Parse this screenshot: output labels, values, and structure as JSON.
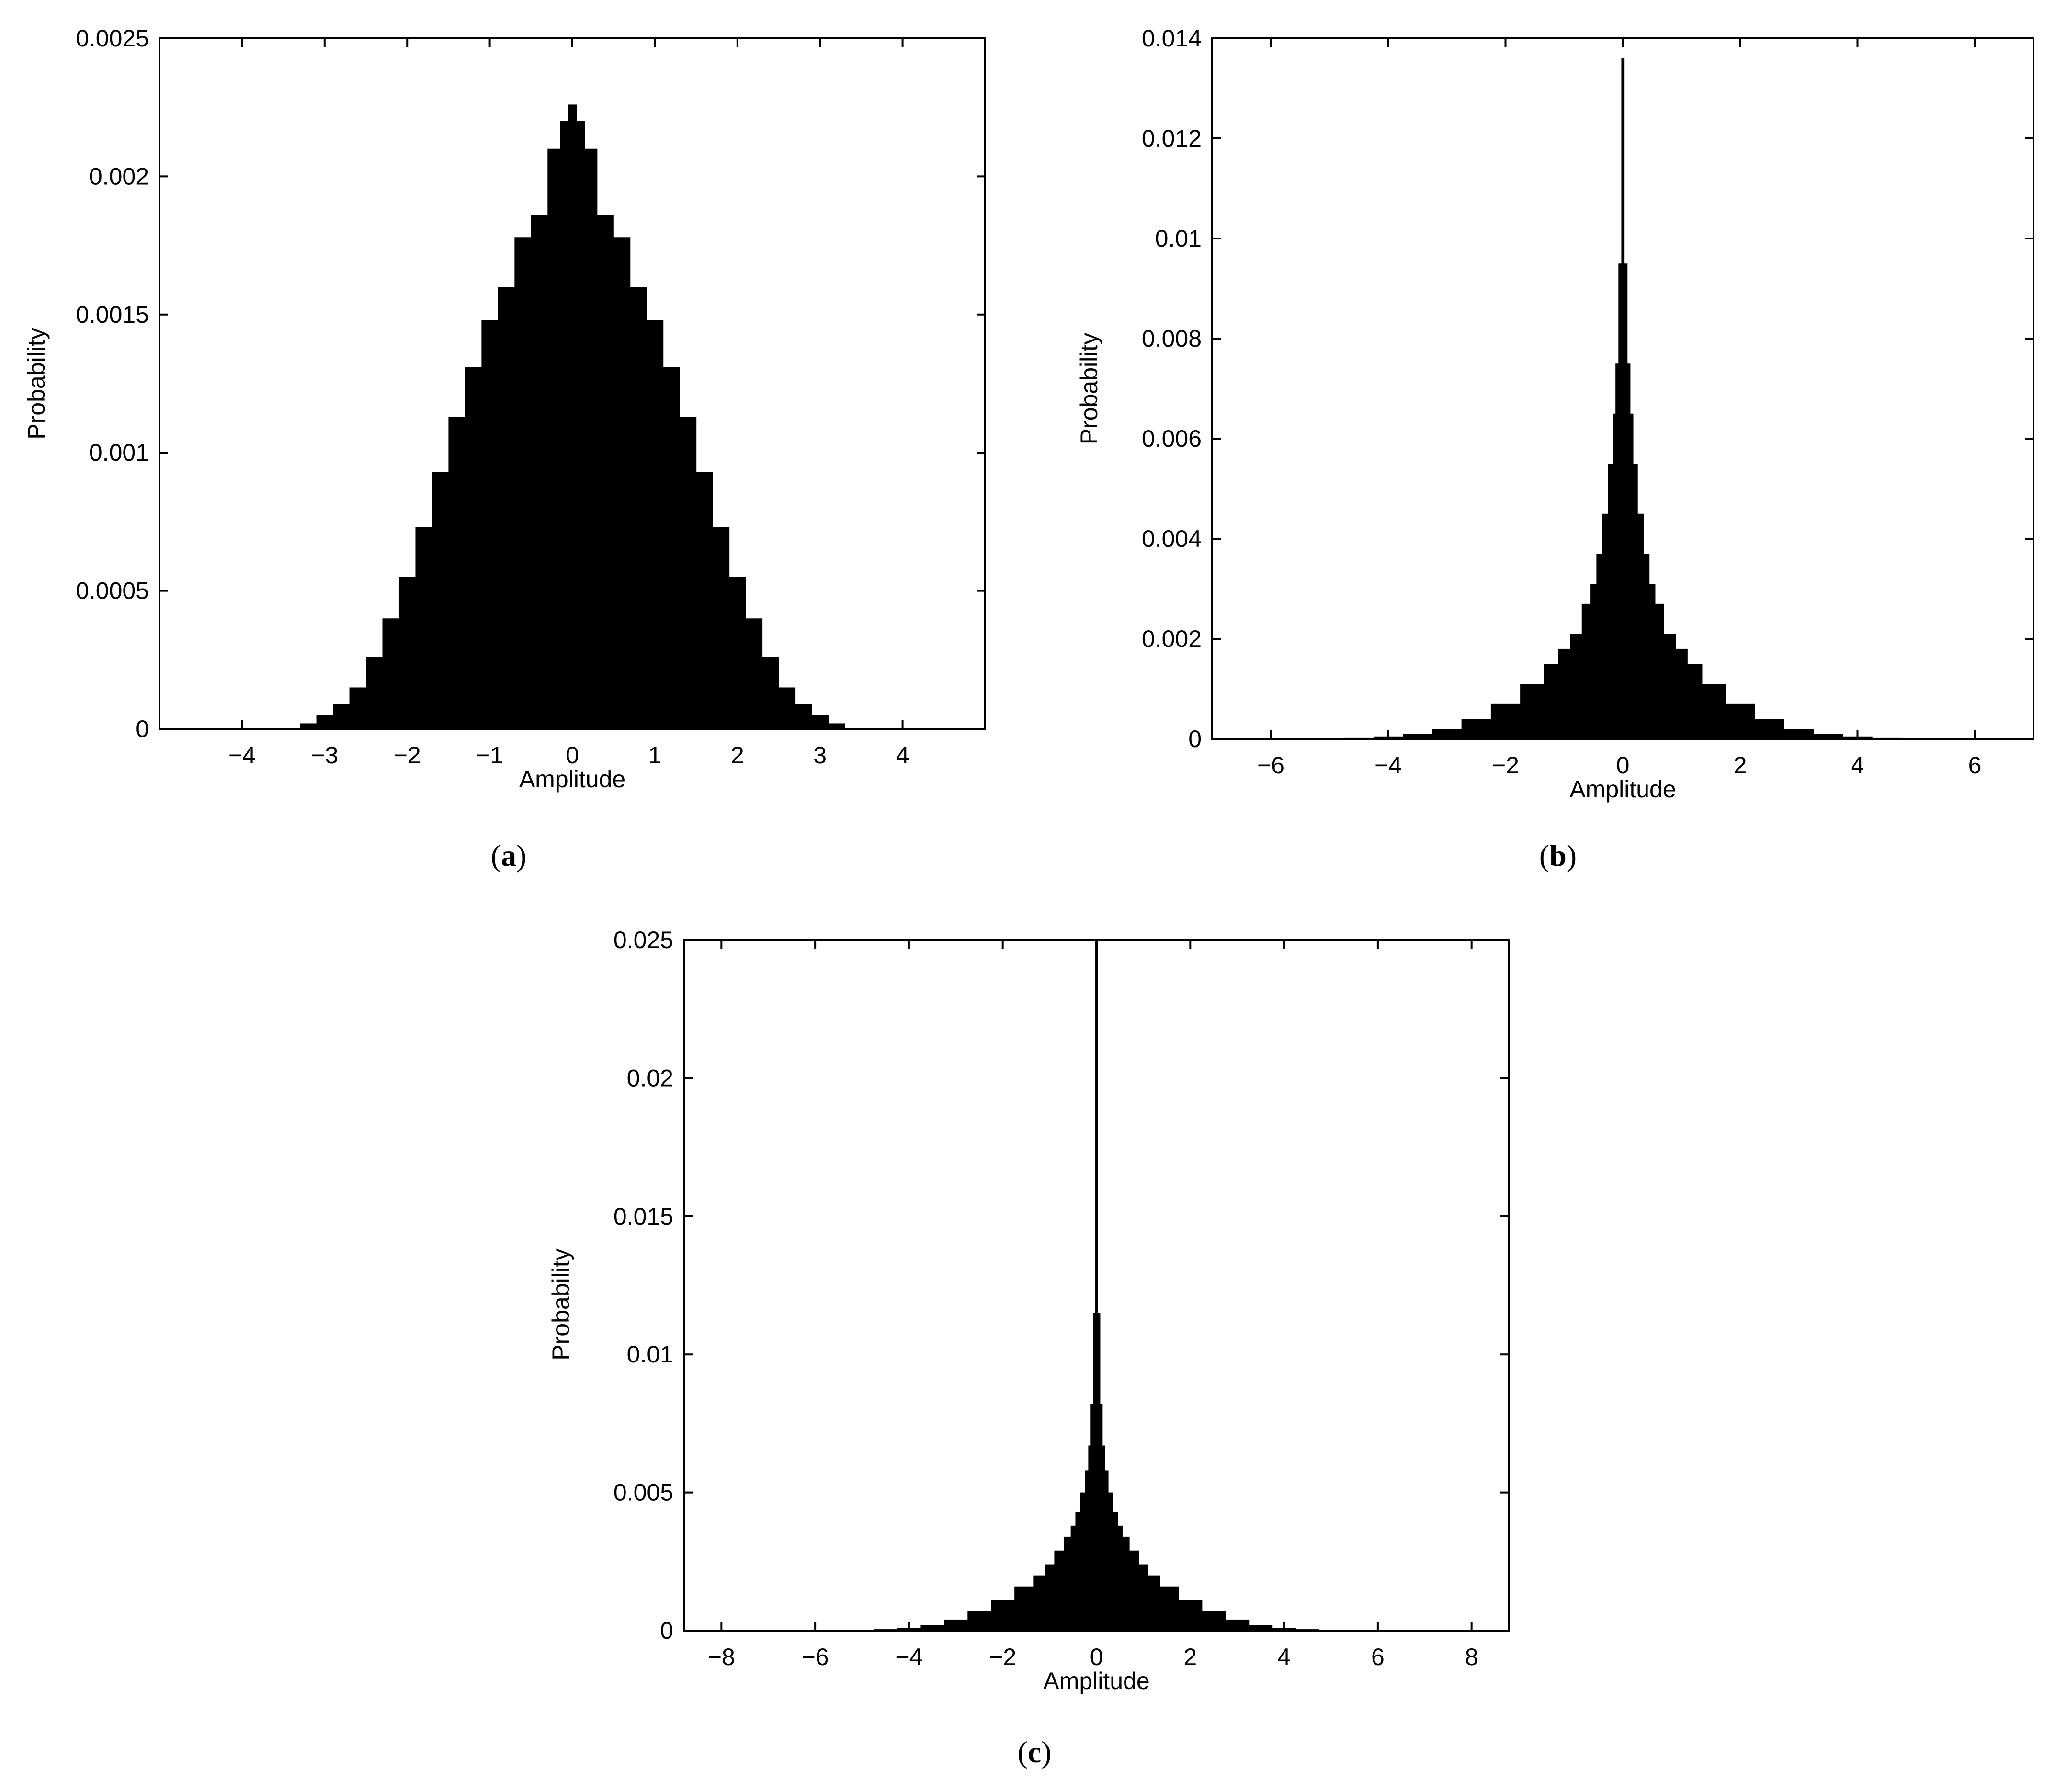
{
  "figure": {
    "captions": [
      "(a)",
      "(b)",
      "(c)"
    ],
    "colors": {
      "bars": "#000000",
      "axes": "#000000",
      "background": "#ffffff"
    }
  },
  "chart_data": [
    {
      "id": "a",
      "caption_letter": "a",
      "type": "bar",
      "xlabel": "Amplitude",
      "ylabel": "Probability",
      "xlim": [
        -5,
        5
      ],
      "ylim": [
        0,
        0.0025
      ],
      "xticks": [
        -4,
        -3,
        -2,
        -1,
        0,
        1,
        2,
        3,
        4
      ],
      "xtick_labels": [
        "−4",
        "−3",
        "−2",
        "−1",
        "0",
        "1",
        "2",
        "3",
        "4"
      ],
      "yticks": [
        0,
        0.0005,
        0.001,
        0.0015,
        0.002,
        0.0025
      ],
      "ytick_labels": [
        "0",
        "0.0005",
        "0.001",
        "0.0015",
        "0.002",
        "0.0025"
      ],
      "grid": false,
      "legend": "none",
      "x": [
        -3.2,
        -3.0,
        -2.8,
        -2.6,
        -2.4,
        -2.2,
        -2.0,
        -1.8,
        -1.6,
        -1.4,
        -1.2,
        -1.0,
        -0.8,
        -0.6,
        -0.4,
        -0.2,
        -0.1,
        0.0,
        0.1,
        0.2,
        0.4,
        0.6,
        0.8,
        1.0,
        1.2,
        1.4,
        1.6,
        1.8,
        2.0,
        2.2,
        2.4,
        2.6,
        2.8,
        3.0,
        3.2
      ],
      "values": [
        2e-05,
        5e-05,
        9e-05,
        0.00015,
        0.00026,
        0.0004,
        0.00055,
        0.00073,
        0.00093,
        0.00113,
        0.00131,
        0.00148,
        0.0016,
        0.00178,
        0.00186,
        0.0021,
        0.0022,
        0.00226,
        0.0022,
        0.0021,
        0.00186,
        0.00178,
        0.0016,
        0.00148,
        0.00131,
        0.00113,
        0.00093,
        0.00073,
        0.00055,
        0.0004,
        0.00026,
        0.00015,
        9e-05,
        5e-05,
        2e-05
      ]
    },
    {
      "id": "b",
      "caption_letter": "b",
      "type": "bar",
      "xlabel": "Amplitude",
      "ylabel": "Probability",
      "xlim": [
        -7,
        7
      ],
      "ylim": [
        0,
        0.014
      ],
      "xticks": [
        -6,
        -4,
        -2,
        0,
        2,
        4,
        6
      ],
      "xtick_labels": [
        "−6",
        "−4",
        "−2",
        "0",
        "2",
        "4",
        "6"
      ],
      "yticks": [
        0,
        0.002,
        0.004,
        0.006,
        0.008,
        0.01,
        0.012,
        0.014
      ],
      "ytick_labels": [
        "0",
        "0.002",
        "0.004",
        "0.006",
        "0.008",
        "0.01",
        "0.012",
        "0.014"
      ],
      "grid": false,
      "legend": "none",
      "x": [
        -4.5,
        -4.0,
        -3.5,
        -3.0,
        -2.5,
        -2.0,
        -1.5,
        -1.2,
        -1.0,
        -0.8,
        -0.6,
        -0.5,
        -0.4,
        -0.3,
        -0.2,
        -0.15,
        -0.1,
        -0.05,
        0.0,
        0.05,
        0.1,
        0.15,
        0.2,
        0.3,
        0.4,
        0.5,
        0.6,
        0.8,
        1.0,
        1.2,
        1.5,
        2.0,
        2.5,
        3.0,
        3.5,
        4.0,
        4.5
      ],
      "values": [
        2e-05,
        5e-05,
        0.0001,
        0.0002,
        0.0004,
        0.0007,
        0.0011,
        0.0015,
        0.0018,
        0.0021,
        0.0027,
        0.0031,
        0.0037,
        0.0045,
        0.0055,
        0.0065,
        0.0075,
        0.0095,
        0.0136,
        0.0095,
        0.0075,
        0.0065,
        0.0055,
        0.0045,
        0.0037,
        0.0031,
        0.0027,
        0.0021,
        0.0018,
        0.0015,
        0.0011,
        0.0007,
        0.0004,
        0.0002,
        0.0001,
        5e-05,
        2e-05
      ]
    },
    {
      "id": "c",
      "caption_letter": "c",
      "type": "bar",
      "xlabel": "Amplitude",
      "ylabel": "Probability",
      "xlim": [
        -8.8,
        8.8
      ],
      "ylim": [
        0,
        0.025
      ],
      "xticks": [
        -8,
        -6,
        -4,
        -2,
        0,
        2,
        4,
        6,
        8
      ],
      "xtick_labels": [
        "−8",
        "−6",
        "−4",
        "−2",
        "0",
        "2",
        "4",
        "6",
        "8"
      ],
      "yticks": [
        0,
        0.005,
        0.01,
        0.015,
        0.02,
        0.025
      ],
      "ytick_labels": [
        "0",
        "0.005",
        "0.01",
        "0.015",
        "0.02",
        "0.025"
      ],
      "grid": false,
      "legend": "none",
      "x": [
        -5.0,
        -4.5,
        -4.0,
        -3.5,
        -3.0,
        -2.5,
        -2.0,
        -1.5,
        -1.2,
        -1.0,
        -0.8,
        -0.6,
        -0.5,
        -0.4,
        -0.3,
        -0.2,
        -0.15,
        -0.1,
        -0.05,
        0.0,
        0.05,
        0.1,
        0.15,
        0.2,
        0.3,
        0.4,
        0.5,
        0.6,
        0.8,
        1.0,
        1.2,
        1.5,
        2.0,
        2.5,
        3.0,
        3.5,
        4.0,
        4.5,
        5.0
      ],
      "values": [
        2e-05,
        5e-05,
        0.0001,
        0.0002,
        0.0004,
        0.0007,
        0.0011,
        0.0016,
        0.002,
        0.0024,
        0.0029,
        0.0034,
        0.0038,
        0.0043,
        0.005,
        0.0058,
        0.0067,
        0.0082,
        0.0115,
        0.025,
        0.0115,
        0.0082,
        0.0067,
        0.0058,
        0.005,
        0.0043,
        0.0038,
        0.0034,
        0.0029,
        0.0024,
        0.002,
        0.0016,
        0.0011,
        0.0007,
        0.0004,
        0.0002,
        0.0001,
        5e-05,
        2e-05
      ]
    }
  ]
}
